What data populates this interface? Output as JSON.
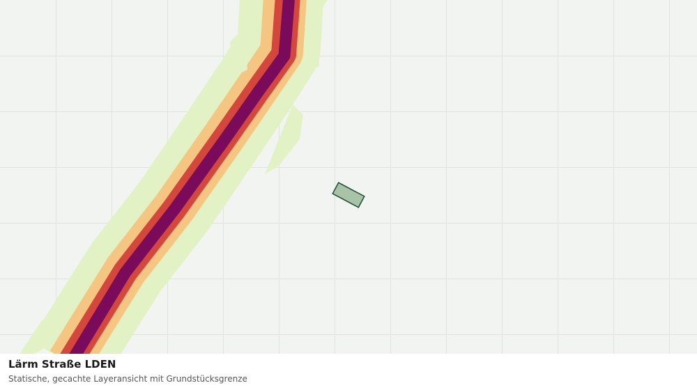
{
  "legend": {
    "title": "Lärm Straße LDEN",
    "subtitle": "Statische, gecachte Layeransicht mit Grundstücksgrenze"
  }
}
